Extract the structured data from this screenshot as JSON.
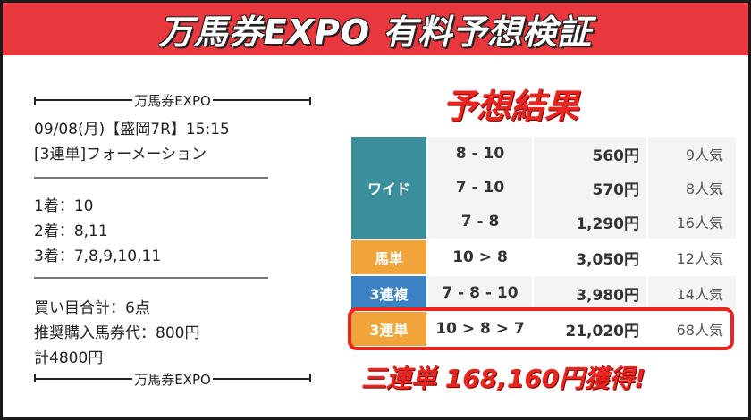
{
  "banner": {
    "title": "万馬券EXPO 有料予想検証"
  },
  "ticket": {
    "brand_top": "万馬券EXPO",
    "race": "09/08(月)【盛岡7R】15:15",
    "bet_type": "[3連単]フォーメーション",
    "first": "1着：10",
    "second": "2着：8,11",
    "third": "3着：7,8,9,10,11",
    "total_points": "買い目合計：6点",
    "recommended": "推奨購入馬券代：800円",
    "total_amount": "計4800円",
    "brand_bottom": "万馬券EXPO"
  },
  "result": {
    "title": "予想結果",
    "rows": [
      {
        "label": "ワイド",
        "color": "#3b8f9c",
        "entries": [
          {
            "combo": "8 - 10",
            "payout": "560円",
            "popularity": "9人気"
          },
          {
            "combo": "7 - 10",
            "payout": "570円",
            "popularity": "8人気"
          },
          {
            "combo": "7 - 8",
            "payout": "1,290円",
            "popularity": "16人気"
          }
        ]
      },
      {
        "label": "馬単",
        "color": "#f0a43a",
        "entries": [
          {
            "combo": "10 > 8",
            "payout": "3,050円",
            "popularity": "12人気"
          }
        ]
      },
      {
        "label": "3連複",
        "color": "#3b82c4",
        "entries": [
          {
            "combo": "7 - 8 - 10",
            "payout": "3,980円",
            "popularity": "14人気"
          }
        ]
      },
      {
        "label": "3連単",
        "color": "#f0a43a",
        "entries": [
          {
            "combo": "10 > 8 > 7",
            "payout": "21,020円",
            "popularity": "68人気"
          }
        ]
      }
    ],
    "bonus": "三連単 168,160円獲得!"
  },
  "colors": {
    "banner": "#e8383d",
    "accent_red": "#e8261f"
  }
}
